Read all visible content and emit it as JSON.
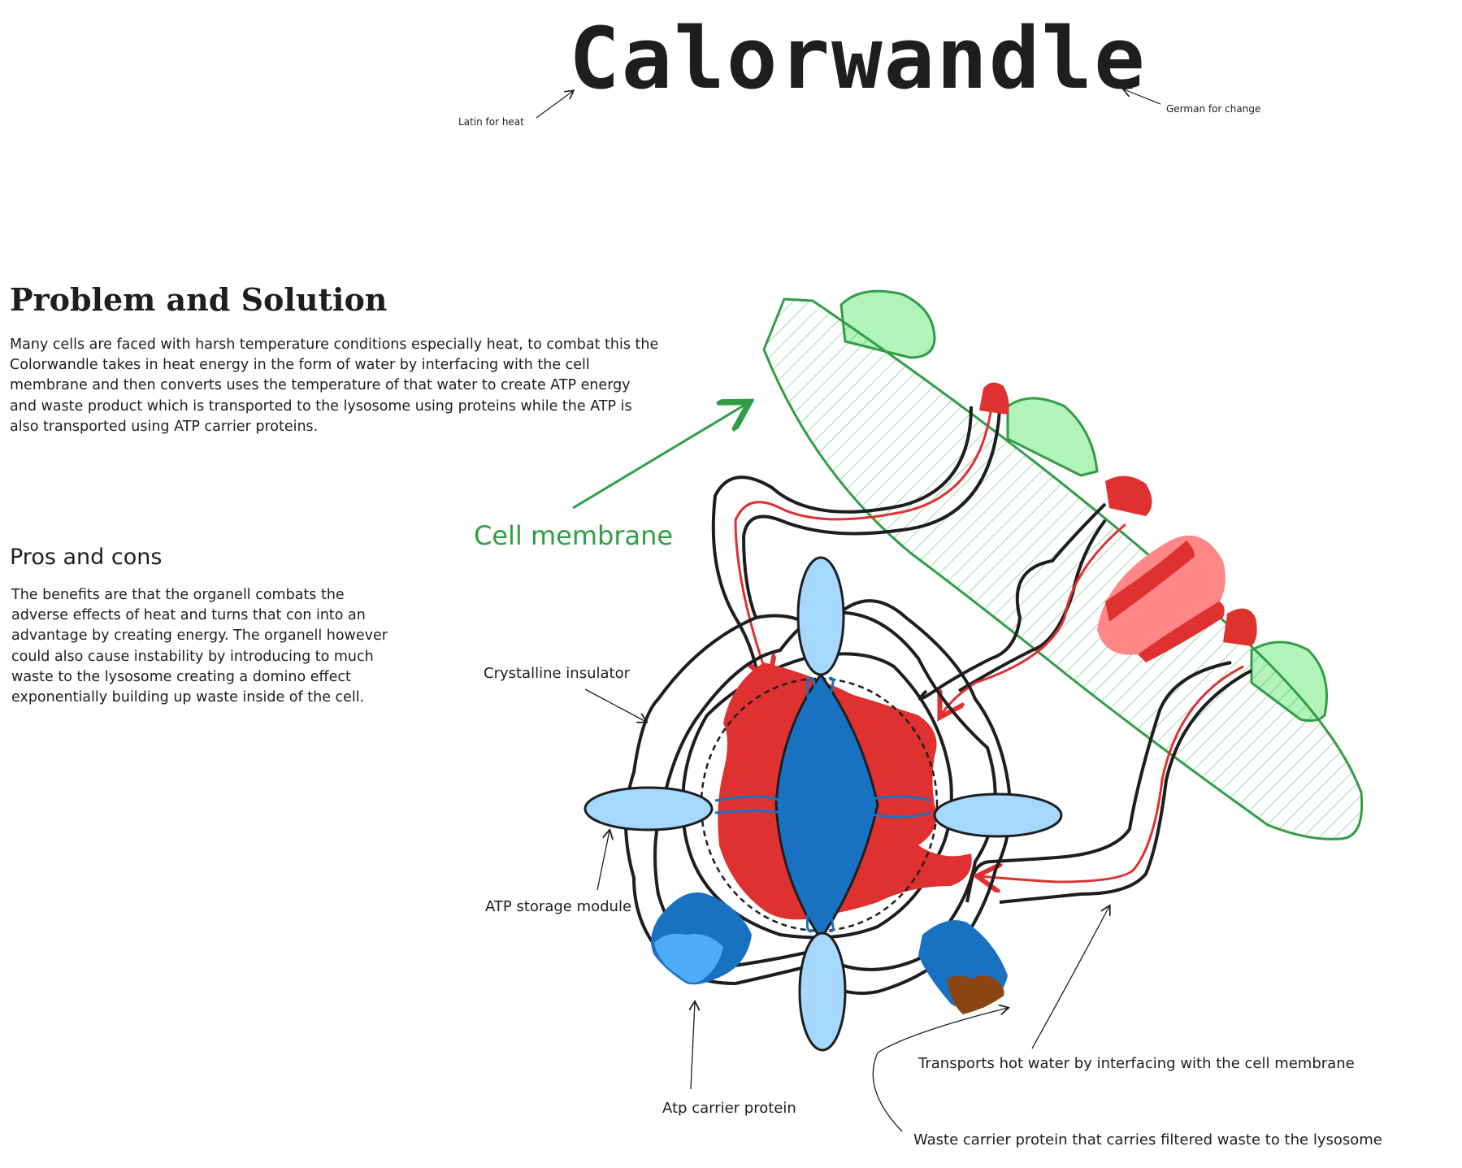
{
  "title": "Calorwandle",
  "etymology": {
    "latin": "Latin for heat",
    "german": "German for change"
  },
  "problem_solution": {
    "heading": "Problem and Solution",
    "body": "Many cells are faced with harsh temperature conditions especially heat, to combat this the Colorwandle takes in heat energy in the form of water by interfacing with the cell membrane and then converts uses the temperature of that water to create ATP energy and waste product which is transported to the lysosome using proteins while the ATP is also transported using ATP carrier proteins."
  },
  "pros_cons": {
    "heading": "Pros and cons",
    "body": "The benefits are that the organell combats the adverse effects of heat and turns that con into an advantage by creating energy. The organell however could also cause instability by introducing to much waste to the lysosome creating a domino effect exponentially building up waste inside of the cell."
  },
  "labels": {
    "cell_membrane": "Cell membrane",
    "crystalline_insulator": "Crystalline insulator",
    "atp_storage_module": "ATP storage module",
    "atp_carrier_protein": "Atp carrier protein",
    "hot_water_transport": "Transports hot water by interfacing with the cell membrane",
    "waste_carrier": "Waste carrier protein that carries filtered waste to the lysosome"
  },
  "colors": {
    "membrane_green": "#2f9e44",
    "membrane_fill": "#b2f2bb",
    "core_red": "#e03131",
    "pink": "#ff8787",
    "dark_blue": "#1971c2",
    "light_blue": "#a5d8ff",
    "bright_blue": "#4dabf7",
    "waste_brown": "#8b4513",
    "ink": "#1e1e1e"
  }
}
